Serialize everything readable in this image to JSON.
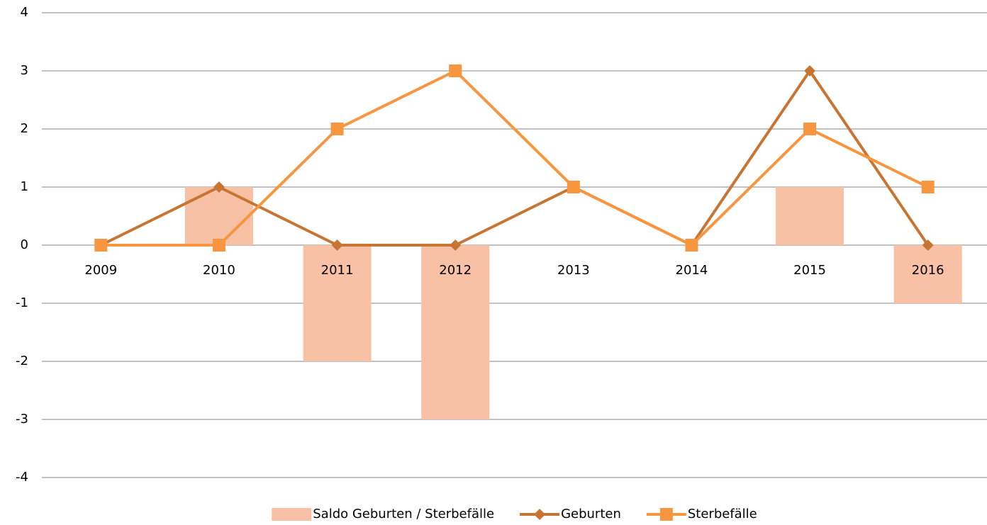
{
  "chart_data": {
    "type": "combo",
    "categories": [
      "2009",
      "2010",
      "2011",
      "2012",
      "2013",
      "2014",
      "2015",
      "2016"
    ],
    "series": [
      {
        "name": "Saldo Geburten / Sterbefälle",
        "type": "bar",
        "color": "#f8c1a5",
        "values": [
          0,
          1,
          -2,
          -3,
          0,
          0,
          1,
          -1
        ]
      },
      {
        "name": "Geburten",
        "type": "line",
        "marker": "diamond",
        "color": "#c87533",
        "values": [
          0,
          1,
          0,
          0,
          1,
          0,
          3,
          0
        ]
      },
      {
        "name": "Sterbefälle",
        "type": "line",
        "marker": "square",
        "color": "#f7963f",
        "values": [
          0,
          0,
          2,
          3,
          1,
          0,
          2,
          1
        ]
      }
    ],
    "ylim": [
      -4,
      4
    ],
    "yticks": [
      -4,
      -3,
      -2,
      -1,
      0,
      1,
      2,
      3,
      4
    ],
    "grid": true,
    "legend": "bottom"
  }
}
